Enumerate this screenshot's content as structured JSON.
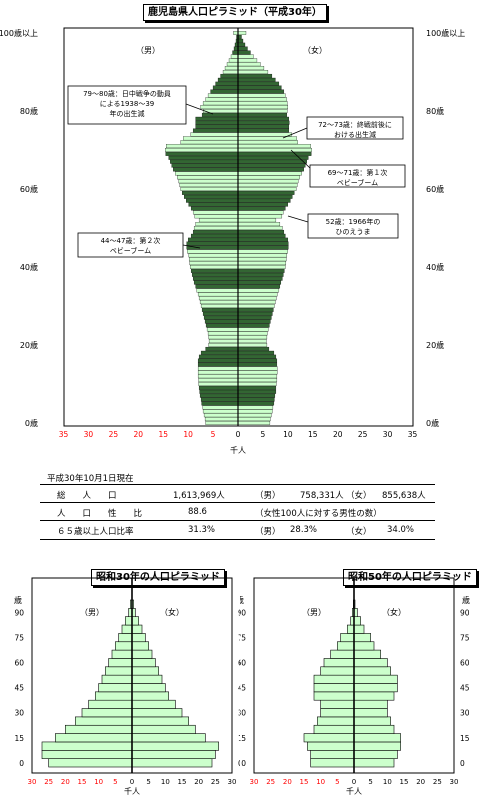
{
  "main_title": "鹿児島県人口ピラミッド（平成30年）",
  "labels": {
    "male": "（男）",
    "female": "（女）",
    "unit": "千人"
  },
  "main_axis": {
    "age_labels": [
      "0歳",
      "20歳",
      "40歳",
      "60歳",
      "80歳",
      "100歳以上"
    ],
    "x_ticks": [
      "35",
      "30",
      "25",
      "20",
      "15",
      "10",
      "5",
      "0",
      "5",
      "10",
      "15",
      "20",
      "25",
      "30",
      "35"
    ]
  },
  "annotations": [
    {
      "id": "a1",
      "lines": [
        "79～80歳：日中戦争の動員",
        "による1938～39",
        "年の出生減"
      ]
    },
    {
      "id": "a2",
      "lines": [
        "72～73歳：終戦前後に",
        "おける出生減"
      ]
    },
    {
      "id": "a3",
      "lines": [
        "69～71歳：第１次",
        "ベビーブーム"
      ]
    },
    {
      "id": "a4",
      "lines": [
        "52歳：1966年の",
        "ひのえうま"
      ]
    },
    {
      "id": "a5",
      "lines": [
        "44～47歳：第２次",
        "ベビーブーム"
      ]
    }
  ],
  "stats": {
    "date": "平成30年10月1日現在",
    "rows": [
      {
        "label": "総　　人　　口",
        "value": "1,613,969人",
        "m_label": "（男）",
        "m_value": "758,331人",
        "f_label": "（女）",
        "f_value": "855,638人"
      },
      {
        "label": "人　　口　　性　　比",
        "value": "88.6",
        "note": "（女性100人に対する男性の数）"
      },
      {
        "label": "６５歳以上人口比率",
        "value": "31.3%",
        "m_label": "（男）",
        "m_value": "28.3%",
        "f_label": "（女）",
        "f_value": "34.0%"
      }
    ]
  },
  "small_charts": [
    {
      "title": "昭和30年の人口ピラミッド"
    },
    {
      "title": "昭和50年の人口ピラミッド"
    }
  ],
  "small_axis": {
    "age_header": "歳",
    "age_labels": [
      "0",
      "15",
      "30",
      "45",
      "60",
      "75",
      "90"
    ],
    "x_ticks": [
      "30",
      "25",
      "20",
      "15",
      "10",
      "5",
      "0",
      "5",
      "10",
      "15",
      "20",
      "25",
      "30"
    ]
  },
  "colors": {
    "bar_light": "#ccffcc",
    "bar_dark": "#336633",
    "tick_red": "#ff0000"
  },
  "chart_data": [
    {
      "type": "bar",
      "orientation": "horizontal population pyramid",
      "title": "鹿児島県人口ピラミッド（平成30年）",
      "xlabel": "千人",
      "xlim": [
        -35,
        35
      ],
      "note": "single-year ages 0..100+; male = left, female = right; values in thousands; every 5-year band alternates light/dark green",
      "ages": [
        0,
        1,
        2,
        3,
        4,
        5,
        6,
        7,
        8,
        9,
        10,
        11,
        12,
        13,
        14,
        15,
        16,
        17,
        18,
        19,
        20,
        21,
        22,
        23,
        24,
        25,
        26,
        27,
        28,
        29,
        30,
        31,
        32,
        33,
        34,
        35,
        36,
        37,
        38,
        39,
        40,
        41,
        42,
        43,
        44,
        45,
        46,
        47,
        48,
        49,
        50,
        51,
        52,
        53,
        54,
        55,
        56,
        57,
        58,
        59,
        60,
        61,
        62,
        63,
        64,
        65,
        66,
        67,
        68,
        69,
        70,
        71,
        72,
        73,
        74,
        75,
        76,
        77,
        78,
        79,
        80,
        81,
        82,
        83,
        84,
        85,
        86,
        87,
        88,
        89,
        90,
        91,
        92,
        93,
        94,
        95,
        96,
        97,
        98,
        99,
        100
      ],
      "series": [
        {
          "name": "（男）",
          "values": [
            6.5,
            6.6,
            6.8,
            7.0,
            7.1,
            7.3,
            7.4,
            7.6,
            7.7,
            7.8,
            7.9,
            7.9,
            8.0,
            8.0,
            8.0,
            8.0,
            8.0,
            7.8,
            7.4,
            6.5,
            5.9,
            5.8,
            5.9,
            6.0,
            6.2,
            6.4,
            6.6,
            6.8,
            7.0,
            7.2,
            7.4,
            7.6,
            7.8,
            8.0,
            8.3,
            8.5,
            8.8,
            9.0,
            9.2,
            9.4,
            9.6,
            9.7,
            9.8,
            9.9,
            10.2,
            10.3,
            10.3,
            10.0,
            9.4,
            9.0,
            8.8,
            8.5,
            7.8,
            8.7,
            9.0,
            9.4,
            9.9,
            10.4,
            10.8,
            11.2,
            11.5,
            11.7,
            11.9,
            12.2,
            12.6,
            13.0,
            13.3,
            13.6,
            13.9,
            14.5,
            14.6,
            14.4,
            11.5,
            11.0,
            9.5,
            9.0,
            8.5,
            8.5,
            8.5,
            7.2,
            7.0,
            7.5,
            7.0,
            6.5,
            6.0,
            5.5,
            5.0,
            4.5,
            4.0,
            3.5,
            3.0,
            2.6,
            2.2,
            1.8,
            1.4,
            1.1,
            0.8,
            0.6,
            0.4,
            0.3,
            0.9
          ]
        },
        {
          "name": "（女）",
          "values": [
            6.4,
            6.5,
            6.7,
            6.9,
            7.0,
            7.2,
            7.3,
            7.4,
            7.6,
            7.6,
            7.7,
            7.8,
            7.8,
            7.9,
            7.9,
            7.8,
            7.8,
            7.6,
            7.2,
            6.2,
            5.8,
            5.7,
            5.8,
            5.9,
            6.1,
            6.3,
            6.5,
            6.7,
            6.9,
            7.1,
            7.3,
            7.5,
            7.7,
            7.9,
            8.2,
            8.4,
            8.6,
            8.9,
            9.1,
            9.3,
            9.5,
            9.6,
            9.7,
            9.8,
            10.0,
            10.1,
            10.1,
            10.0,
            9.5,
            9.2,
            8.9,
            8.4,
            7.6,
            8.8,
            9.1,
            9.5,
            10.0,
            10.5,
            10.9,
            11.3,
            11.7,
            11.9,
            12.1,
            12.4,
            12.8,
            13.2,
            13.5,
            13.8,
            14.1,
            14.7,
            14.8,
            14.6,
            12.0,
            11.8,
            10.8,
            10.2,
            10.2,
            10.3,
            10.2,
            9.8,
            9.9,
            10.0,
            9.9,
            9.8,
            9.5,
            9.2,
            8.7,
            8.2,
            7.5,
            6.8,
            6.0,
            5.2,
            4.5,
            3.8,
            3.1,
            2.5,
            1.9,
            1.4,
            1.0,
            0.7,
            1.6
          ]
        }
      ]
    },
    {
      "type": "bar",
      "orientation": "horizontal population pyramid",
      "title": "昭和30年の人口ピラミッド",
      "xlabel": "千人",
      "xlim": [
        -30,
        30
      ],
      "note": "5-year age bands; male = left, female = right; values in thousands per single year (approx.)",
      "categories": [
        "0-4",
        "5-9",
        "10-14",
        "15-19",
        "20-24",
        "25-29",
        "30-34",
        "35-39",
        "40-44",
        "45-49",
        "50-54",
        "55-59",
        "60-64",
        "65-69",
        "70-74",
        "75-79",
        "80-84",
        "85-89",
        "90-94",
        "95-99"
      ],
      "series": [
        {
          "name": "（男）",
          "values": [
            25,
            27,
            27,
            23,
            20,
            17,
            15,
            13,
            11,
            10,
            9,
            8,
            7,
            6,
            5,
            4,
            3,
            2,
            1,
            0.5
          ]
        },
        {
          "name": "（女）",
          "values": [
            24,
            25,
            26,
            22,
            19,
            17,
            15,
            13,
            11,
            10,
            9,
            8,
            7,
            6,
            5,
            4,
            3,
            2,
            1,
            0.5
          ]
        }
      ]
    },
    {
      "type": "bar",
      "orientation": "horizontal population pyramid",
      "title": "昭和50年の人口ピラミッド",
      "xlabel": "千人",
      "xlim": [
        -30,
        30
      ],
      "note": "5-year age bands; male = left, female = right; values in thousands per single year (approx.)",
      "categories": [
        "0-4",
        "5-9",
        "10-14",
        "15-19",
        "20-24",
        "25-29",
        "30-34",
        "35-39",
        "40-44",
        "45-49",
        "50-54",
        "55-59",
        "60-64",
        "65-69",
        "70-74",
        "75-79",
        "80-84",
        "85-89",
        "90-94",
        "95-99"
      ],
      "series": [
        {
          "name": "（男）",
          "values": [
            13,
            13,
            14,
            15,
            12,
            11,
            10,
            10,
            12,
            12,
            12,
            10,
            9,
            7,
            5,
            4,
            2,
            1,
            0.5,
            0.2
          ]
        },
        {
          "name": "（女）",
          "values": [
            12,
            13,
            14,
            14,
            12,
            11,
            10,
            10,
            12,
            13,
            13,
            11,
            10,
            8,
            6,
            5,
            3,
            2,
            1,
            0.3
          ]
        }
      ]
    }
  ]
}
